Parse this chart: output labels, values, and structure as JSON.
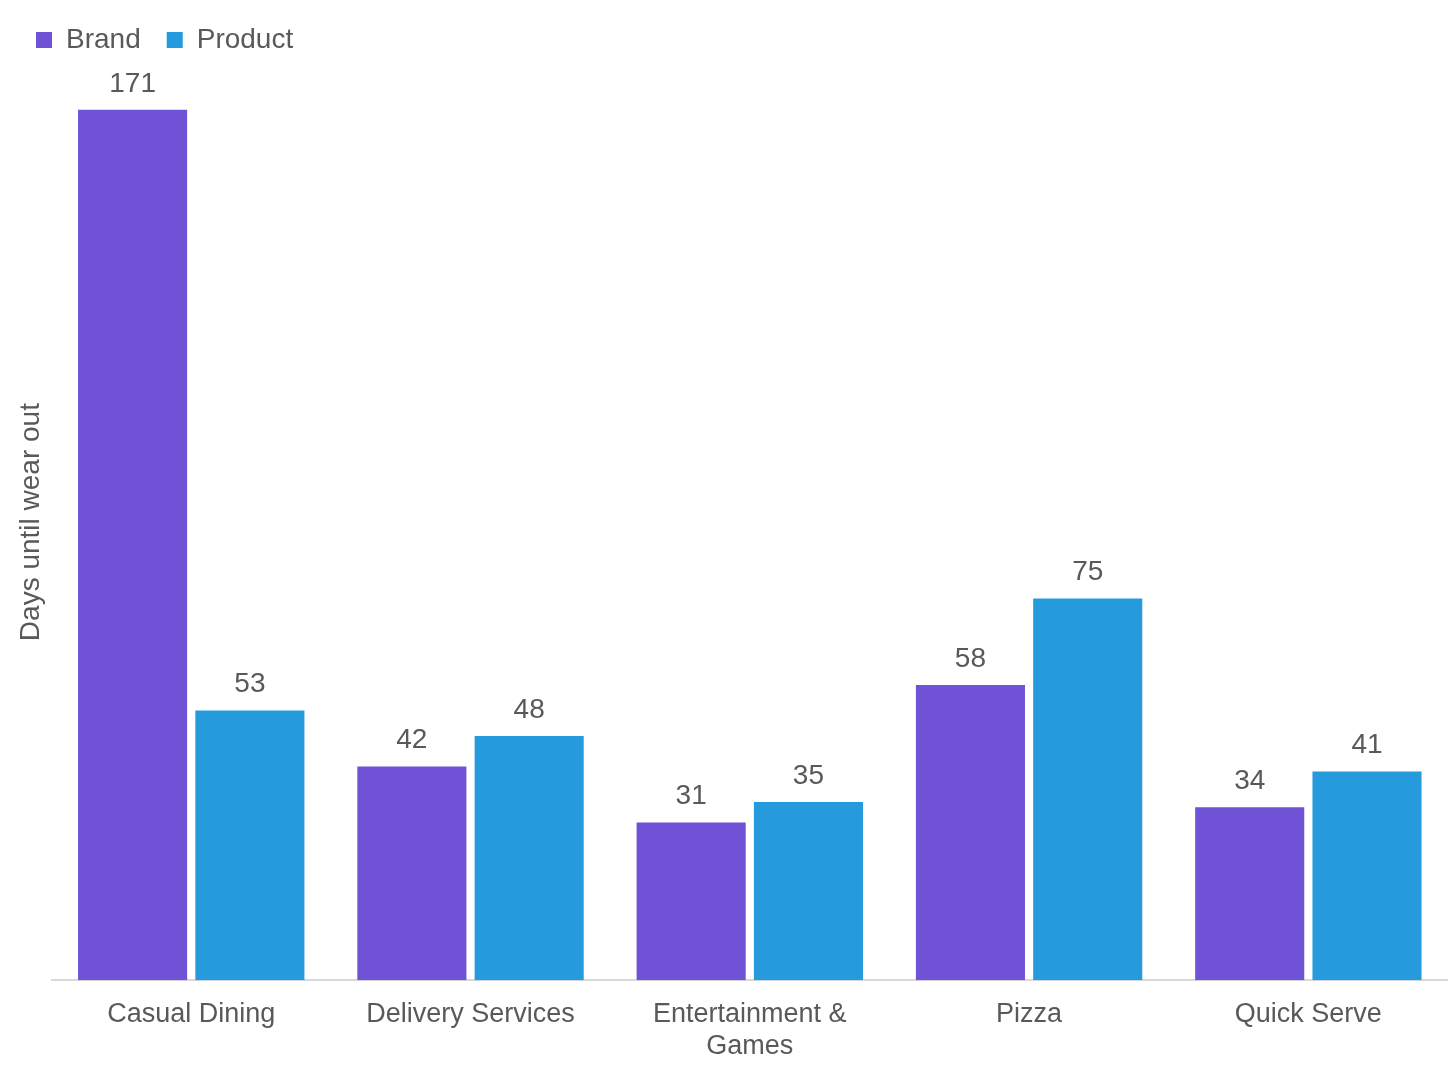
{
  "chart_data": {
    "type": "bar",
    "ylabel": "Days until wear out",
    "categories": [
      "Casual Dining",
      "Delivery Services",
      "Entertainment & Games",
      "Pizza",
      "Quick Serve"
    ],
    "series": [
      {
        "name": "Brand",
        "color": "#6f52d6",
        "values": [
          171,
          42,
          31,
          58,
          34
        ]
      },
      {
        "name": "Product",
        "color": "#259bdd",
        "values": [
          53,
          48,
          35,
          75,
          41
        ]
      }
    ],
    "data_labels": true,
    "grid": false,
    "legend": "top left"
  }
}
